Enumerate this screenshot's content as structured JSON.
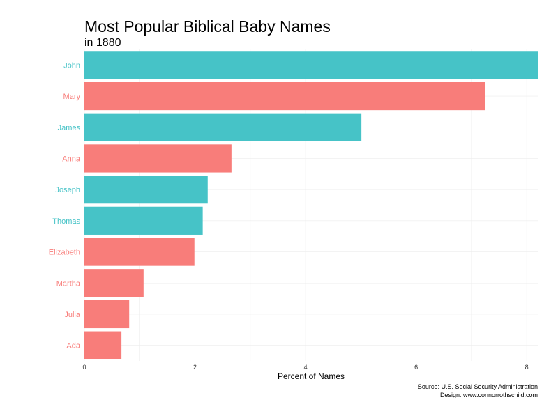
{
  "chart_data": {
    "type": "bar",
    "orientation": "horizontal",
    "title": "Most Popular Biblical Baby Names",
    "subtitle": "in 1880",
    "xlabel": "Percent of Names",
    "ylabel": "",
    "xlim": [
      0,
      8.2
    ],
    "x_ticks": [
      0,
      2,
      4,
      6,
      8
    ],
    "grid": true,
    "legend": "none",
    "colors": {
      "male": "#46C3C7",
      "female": "#F87D7A"
    },
    "categories": [
      "John",
      "Mary",
      "James",
      "Anna",
      "Joseph",
      "Thomas",
      "Elizabeth",
      "Martha",
      "Julia",
      "Ada"
    ],
    "values": [
      8.2,
      7.25,
      5.01,
      2.66,
      2.23,
      2.14,
      1.99,
      1.07,
      0.81,
      0.67
    ],
    "groups": [
      "male",
      "female",
      "male",
      "female",
      "male",
      "male",
      "female",
      "female",
      "female",
      "female"
    ]
  },
  "caption": {
    "source": "Source: U.S. Social Security Administration",
    "design": "Design: www.connorrothschild.com"
  }
}
